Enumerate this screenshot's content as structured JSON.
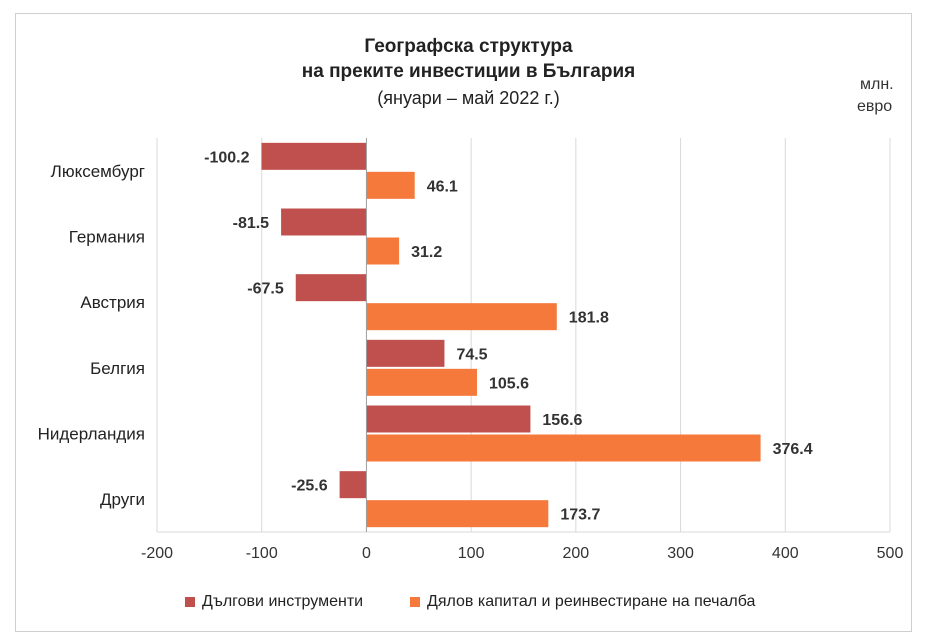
{
  "chart_data": {
    "type": "bar",
    "orientation": "horizontal",
    "title": "Географска структура",
    "title_line2": "на преките инвестиции в България",
    "subtitle": "(януари – май 2022 г.)",
    "unit_line1": "млн.",
    "unit_line2": "евро",
    "categories": [
      "Люксембург",
      "Германия",
      "Австрия",
      "Белгия",
      "Нидерландия",
      "Други"
    ],
    "series": [
      {
        "name": "Дългови инструменти",
        "color": "#c0504d",
        "values": [
          -100.2,
          -81.5,
          -67.5,
          74.5,
          156.6,
          -25.6
        ]
      },
      {
        "name": "Дялов капитал и реинвестиране на печалба",
        "color": "#f4793b",
        "values": [
          46.1,
          31.2,
          181.8,
          105.6,
          376.4,
          173.7
        ]
      }
    ],
    "xlim": [
      -200,
      500
    ],
    "xticks": [
      "-200",
      "-100",
      "0",
      "100",
      "200",
      "300",
      "400",
      "500"
    ],
    "grid": true,
    "legend_position": "bottom"
  }
}
